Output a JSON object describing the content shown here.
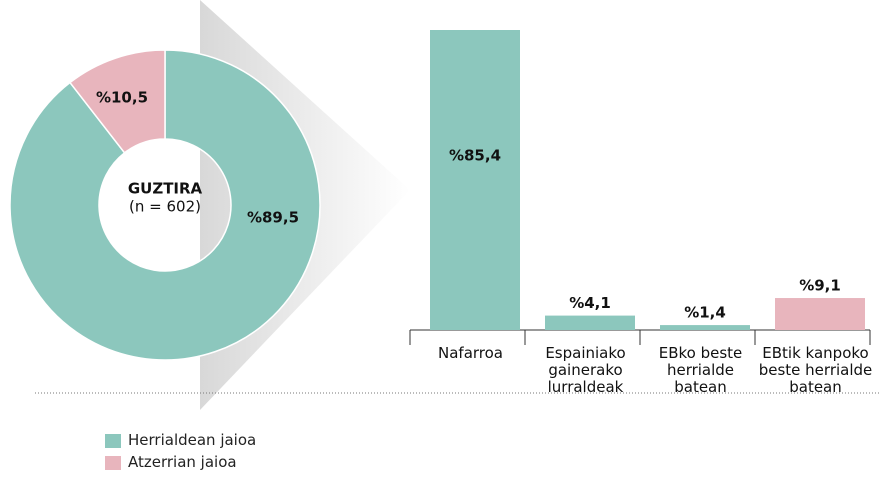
{
  "chart_data": [
    {
      "type": "pie",
      "categories": [
        "Herrialdean jaioa",
        "Atzerrian jaioa"
      ],
      "values": [
        89.5,
        10.5
      ],
      "value_labels": [
        "%89,5",
        "%10,5"
      ],
      "colors": [
        "#8cc7bd",
        "#e8b5bd"
      ],
      "center_title": "GUZTIRA",
      "center_subtitle": "(n = 602)",
      "legend": true
    },
    {
      "type": "bar",
      "categories": [
        "Nafarroa",
        "Espainiako\ngainerako\nlurraldeak",
        "EBko beste\nherrialde\nbatean",
        "EBtik kanpoko\nbeste herrialde\nbatean"
      ],
      "values": [
        85.4,
        4.1,
        1.4,
        9.1
      ],
      "value_labels": [
        "%85,4",
        "%4,1",
        "%1,4",
        "%9,1"
      ],
      "colors": [
        "#8cc7bd",
        "#8cc7bd",
        "#8cc7bd",
        "#e8b5bd"
      ]
    }
  ]
}
